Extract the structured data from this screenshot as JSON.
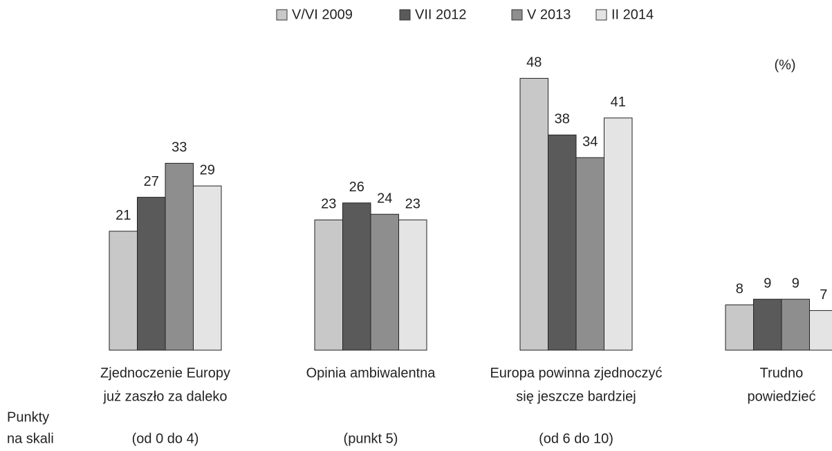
{
  "chart_data": {
    "type": "bar",
    "unit": "(%)",
    "categories": [
      [
        "Zjednoczenie Europy",
        "już zaszło za daleko"
      ],
      [
        "Opinia ambiwalentna"
      ],
      [
        "Europa powinna zjednoczyć",
        "się jeszcze bardziej"
      ],
      [
        "Trudno",
        "powiedzieć"
      ]
    ],
    "scale_label": [
      "Punkty",
      "na skali"
    ],
    "scale_points": [
      "(od 0 do 4)",
      "(punkt 5)",
      "(od 6 do 10)"
    ],
    "series": [
      {
        "name": "V/VI 2009",
        "color": "#c8c8c8",
        "values": [
          21,
          23,
          48,
          8
        ]
      },
      {
        "name": "VII 2012",
        "color": "#5a5a5a",
        "values": [
          27,
          26,
          38,
          9
        ]
      },
      {
        "name": "V 2013",
        "color": "#8e8e8e",
        "values": [
          33,
          24,
          34,
          9
        ]
      },
      {
        "name": "II 2014",
        "color": "#e4e4e4",
        "values": [
          29,
          23,
          41,
          7
        ]
      }
    ]
  }
}
